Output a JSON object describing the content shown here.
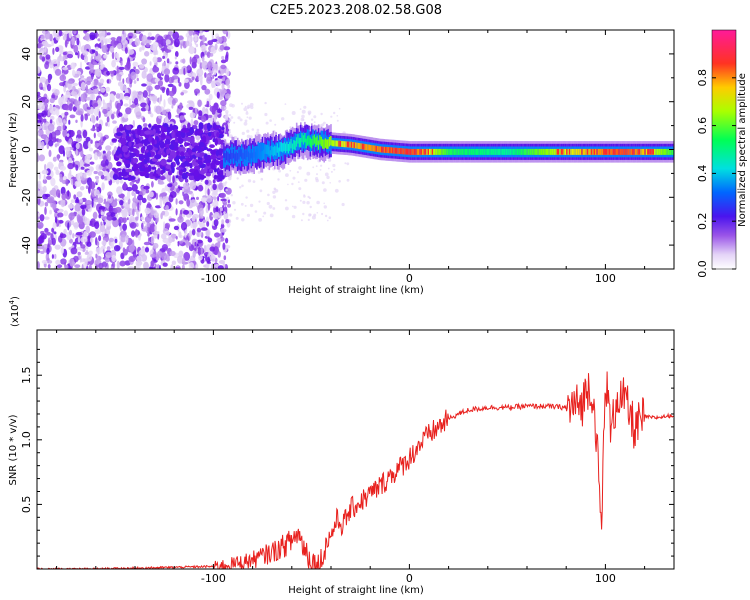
{
  "page_title": "C2E5.2023.208.02.58.G08",
  "chart_data": [
    {
      "type": "heatmap",
      "title": "C2E5.2023.208.02.58.G08",
      "xlabel": "Height of straight line (km)",
      "ylabel": "Frequency (Hz)",
      "xlim": [
        -190,
        135
      ],
      "ylim": [
        -50,
        50
      ],
      "x_ticks": [
        -100,
        0,
        100
      ],
      "y_ticks": [
        -40,
        -20,
        0,
        20,
        40
      ],
      "x_tick_labels": [
        "-100",
        "0",
        "100"
      ],
      "y_tick_labels": [
        "-40",
        "-20",
        "0",
        "20",
        "40"
      ],
      "colorbar": {
        "label": "Normalized spectral amplitude",
        "range": [
          0.0,
          1.0
        ],
        "ticks": [
          0.0,
          0.2,
          0.4,
          0.6,
          0.8
        ],
        "tick_labels": [
          "0.0",
          "0.2",
          "0.4",
          "0.6",
          "0.8"
        ],
        "colormap": [
          "#ffffff",
          "#d9c4f2",
          "#9a55e8",
          "#6a0fe6",
          "#3a1ff0",
          "#0080ff",
          "#00e5e5",
          "#00ff66",
          "#7fff00",
          "#e6ff00",
          "#ff9900",
          "#ff2a2a",
          "#ff1a8c"
        ]
      },
      "signal_band": [
        {
          "x": -95,
          "freq": -3,
          "amplitude": 0.35
        },
        {
          "x": -80,
          "freq": -2,
          "amplitude": 0.4
        },
        {
          "x": -65,
          "freq": 0,
          "amplitude": 0.5
        },
        {
          "x": -55,
          "freq": 4,
          "amplitude": 0.55
        },
        {
          "x": -45,
          "freq": 3,
          "amplitude": 0.65
        },
        {
          "x": -30,
          "freq": 2,
          "amplitude": 0.8
        },
        {
          "x": -15,
          "freq": 0,
          "amplitude": 0.85
        },
        {
          "x": 0,
          "freq": -1,
          "amplitude": 0.9
        },
        {
          "x": 20,
          "freq": -1,
          "amplitude": 0.6
        },
        {
          "x": 50,
          "freq": -1,
          "amplitude": 0.55
        },
        {
          "x": 80,
          "freq": -1,
          "amplitude": 0.75
        },
        {
          "x": 110,
          "freq": -1,
          "amplitude": 0.9
        },
        {
          "x": 135,
          "freq": -1,
          "amplitude": 0.6
        }
      ]
    },
    {
      "type": "line",
      "xlabel": "Height of straight line (km)",
      "ylabel": "SNR (10 * v/v)",
      "y_multiplier": "(x10⁴)",
      "y_multiplier_base": "(x10",
      "y_multiplier_exp": "4",
      "y_multiplier_close": ")",
      "xlim": [
        -190,
        135
      ],
      "ylim": [
        0,
        1.85
      ],
      "x_ticks": [
        -100,
        0,
        100
      ],
      "y_ticks": [
        0.5,
        1.0,
        1.5
      ],
      "x_tick_labels": [
        "-100",
        "0",
        "100"
      ],
      "y_tick_labels": [
        "0.5",
        "1.0",
        "1.5"
      ],
      "color": "#e8211e",
      "series": [
        {
          "name": "SNR",
          "x": [
            -190,
            -160,
            -130,
            -100,
            -90,
            -80,
            -75,
            -70,
            -65,
            -60,
            -57,
            -54,
            -50,
            -46,
            -44,
            -42,
            -40,
            -37,
            -34,
            -30,
            -25,
            -20,
            -15,
            -10,
            -5,
            0,
            5,
            10,
            15,
            20,
            25,
            30,
            40,
            50,
            60,
            70,
            80,
            88,
            92,
            95,
            98,
            100,
            103,
            106,
            110,
            115,
            120,
            125,
            135
          ],
          "y": [
            0.0,
            0.0,
            0.01,
            0.02,
            0.04,
            0.07,
            0.1,
            0.13,
            0.17,
            0.22,
            0.28,
            0.18,
            0.06,
            0.02,
            0.1,
            0.22,
            0.26,
            0.38,
            0.34,
            0.46,
            0.52,
            0.58,
            0.64,
            0.72,
            0.78,
            0.86,
            0.96,
            1.04,
            1.1,
            1.16,
            1.2,
            1.23,
            1.25,
            1.25,
            1.26,
            1.26,
            1.25,
            1.27,
            1.45,
            1.15,
            0.28,
            1.5,
            1.05,
            1.35,
            1.3,
            1.08,
            1.18,
            1.17,
            1.19
          ]
        }
      ]
    }
  ]
}
